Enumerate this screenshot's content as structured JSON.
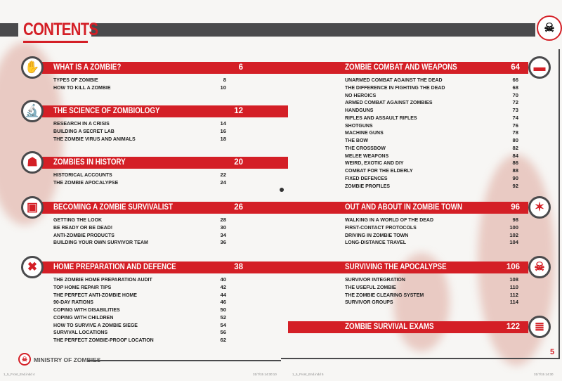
{
  "header": {
    "title": "CONTENTS"
  },
  "left_sections": [
    {
      "icon": "zombie-hand-icon",
      "title": "WHAT IS A ZOMBIE?",
      "page": "6",
      "items": [
        [
          "TYPES OF ZOMBIE",
          "8"
        ],
        [
          "HOW TO KILL A ZOMBIE",
          "10"
        ]
      ]
    },
    {
      "icon": "microscope-icon",
      "title": "THE SCIENCE OF ZOMBIOLOGY",
      "page": "12",
      "items": [
        [
          "RESEARCH IN A CRISIS",
          "14"
        ],
        [
          "BUILDING A SECRET LAB",
          "16"
        ],
        [
          "THE ZOMBIE VIRUS AND ANIMALS",
          "18"
        ]
      ]
    },
    {
      "icon": "zombie-figure-icon",
      "title": "ZOMBIES IN HISTORY",
      "page": "20",
      "items": [
        [
          "HISTORICAL ACCOUNTS",
          "22"
        ],
        [
          "THE ZOMBIE APOCALYPSE",
          "24"
        ]
      ]
    },
    {
      "icon": "backpack-icon",
      "title": "BECOMING A ZOMBIE SURVIVALIST",
      "page": "26",
      "items": [
        [
          "GETTING THE LOOK",
          "28"
        ],
        [
          "BE READY OR BE DEAD!",
          "30"
        ],
        [
          "ANTI-ZOMBIE PRODUCTS",
          "34"
        ],
        [
          "BUILDING YOUR OWN SURVIVOR TEAM",
          "36"
        ]
      ]
    },
    {
      "icon": "tools-icon",
      "title": "HOME PREPARATION AND DEFENCE",
      "page": "38",
      "items": [
        [
          "THE ZOMBIE HOME PREPARATION AUDIT",
          "40"
        ],
        [
          "TOP HOME REPAIR TIPS",
          "42"
        ],
        [
          "THE PERFECT ANTI-ZOMBIE HOME",
          "44"
        ],
        [
          "90-DAY RATIONS",
          "46"
        ],
        [
          "COPING WITH DISABILITIES",
          "50"
        ],
        [
          "COPING WITH CHILDREN",
          "52"
        ],
        [
          "HOW TO SURVIVE A ZOMBIE SIEGE",
          "54"
        ],
        [
          "SURVIVAL LOCATIONS",
          "56"
        ],
        [
          "THE PERFECT ZOMBIE-PROOF LOCATION",
          "62"
        ]
      ]
    }
  ],
  "right_sections": [
    {
      "icon": "handgun-icon",
      "title": "ZOMBIE COMBAT AND WEAPONS",
      "page": "64",
      "items": [
        [
          "UNARMED COMBAT AGAINST THE DEAD",
          "66"
        ],
        [
          "THE DIFFERENCE IN FIGHTING THE DEAD",
          "68"
        ],
        [
          "NO HEROICS",
          "70"
        ],
        [
          "ARMED COMBAT AGAINST ZOMBIES",
          "72"
        ],
        [
          "HANDGUNS",
          "73"
        ],
        [
          "RIFLES AND ASSAULT RIFLES",
          "74"
        ],
        [
          "SHOTGUNS",
          "76"
        ],
        [
          "MACHINE GUNS",
          "78"
        ],
        [
          "THE BOW",
          "80"
        ],
        [
          "THE CROSSBOW",
          "82"
        ],
        [
          "MELEE WEAPONS",
          "84"
        ],
        [
          "WEIRD, EXOTIC AND DIY",
          "86"
        ],
        [
          "COMBAT FOR THE ELDERLY",
          "88"
        ],
        [
          "FIXED DEFENCES",
          "90"
        ],
        [
          "ZOMBIE PROFILES",
          "92"
        ]
      ]
    },
    {
      "icon": "compass-icon",
      "title": "OUT AND ABOUT IN ZOMBIE TOWN",
      "page": "96",
      "items": [
        [
          "WALKING IN A WORLD OF THE DEAD",
          "98"
        ],
        [
          "FIRST-CONTACT PROTOCOLS",
          "100"
        ],
        [
          "DRIVING IN ZOMBIE TOWN",
          "102"
        ],
        [
          "LONG-DISTANCE TRAVEL",
          "104"
        ]
      ]
    },
    {
      "icon": "skull-icon",
      "title": "SURVIVING THE APOCALYPSE",
      "page": "106",
      "items": [
        [
          "SURVIVOR INTEGRATION",
          "108"
        ],
        [
          "THE USEFUL ZOMBIE",
          "110"
        ],
        [
          "THE ZOMBIE CLEARING SYSTEM",
          "112"
        ],
        [
          "SURVIVOR GROUPS",
          "114"
        ]
      ]
    },
    {
      "icon": "books-icon",
      "title": "ZOMBIE SURVIVAL EXAMS",
      "page": "122",
      "items": []
    }
  ],
  "footer": {
    "brand": "MINISTRY OF ZOMBIES",
    "page_number": "5",
    "slug_left": "1_5_Front_End.indd 4",
    "slug_mid": "31/7/15 14:30:10",
    "slug_right_a": "1_5_Front_End.indd 5",
    "slug_right_b": "31/7/15 14:30"
  },
  "colors": {
    "accent": "#d41f26",
    "bar": "#4a4a4c"
  }
}
